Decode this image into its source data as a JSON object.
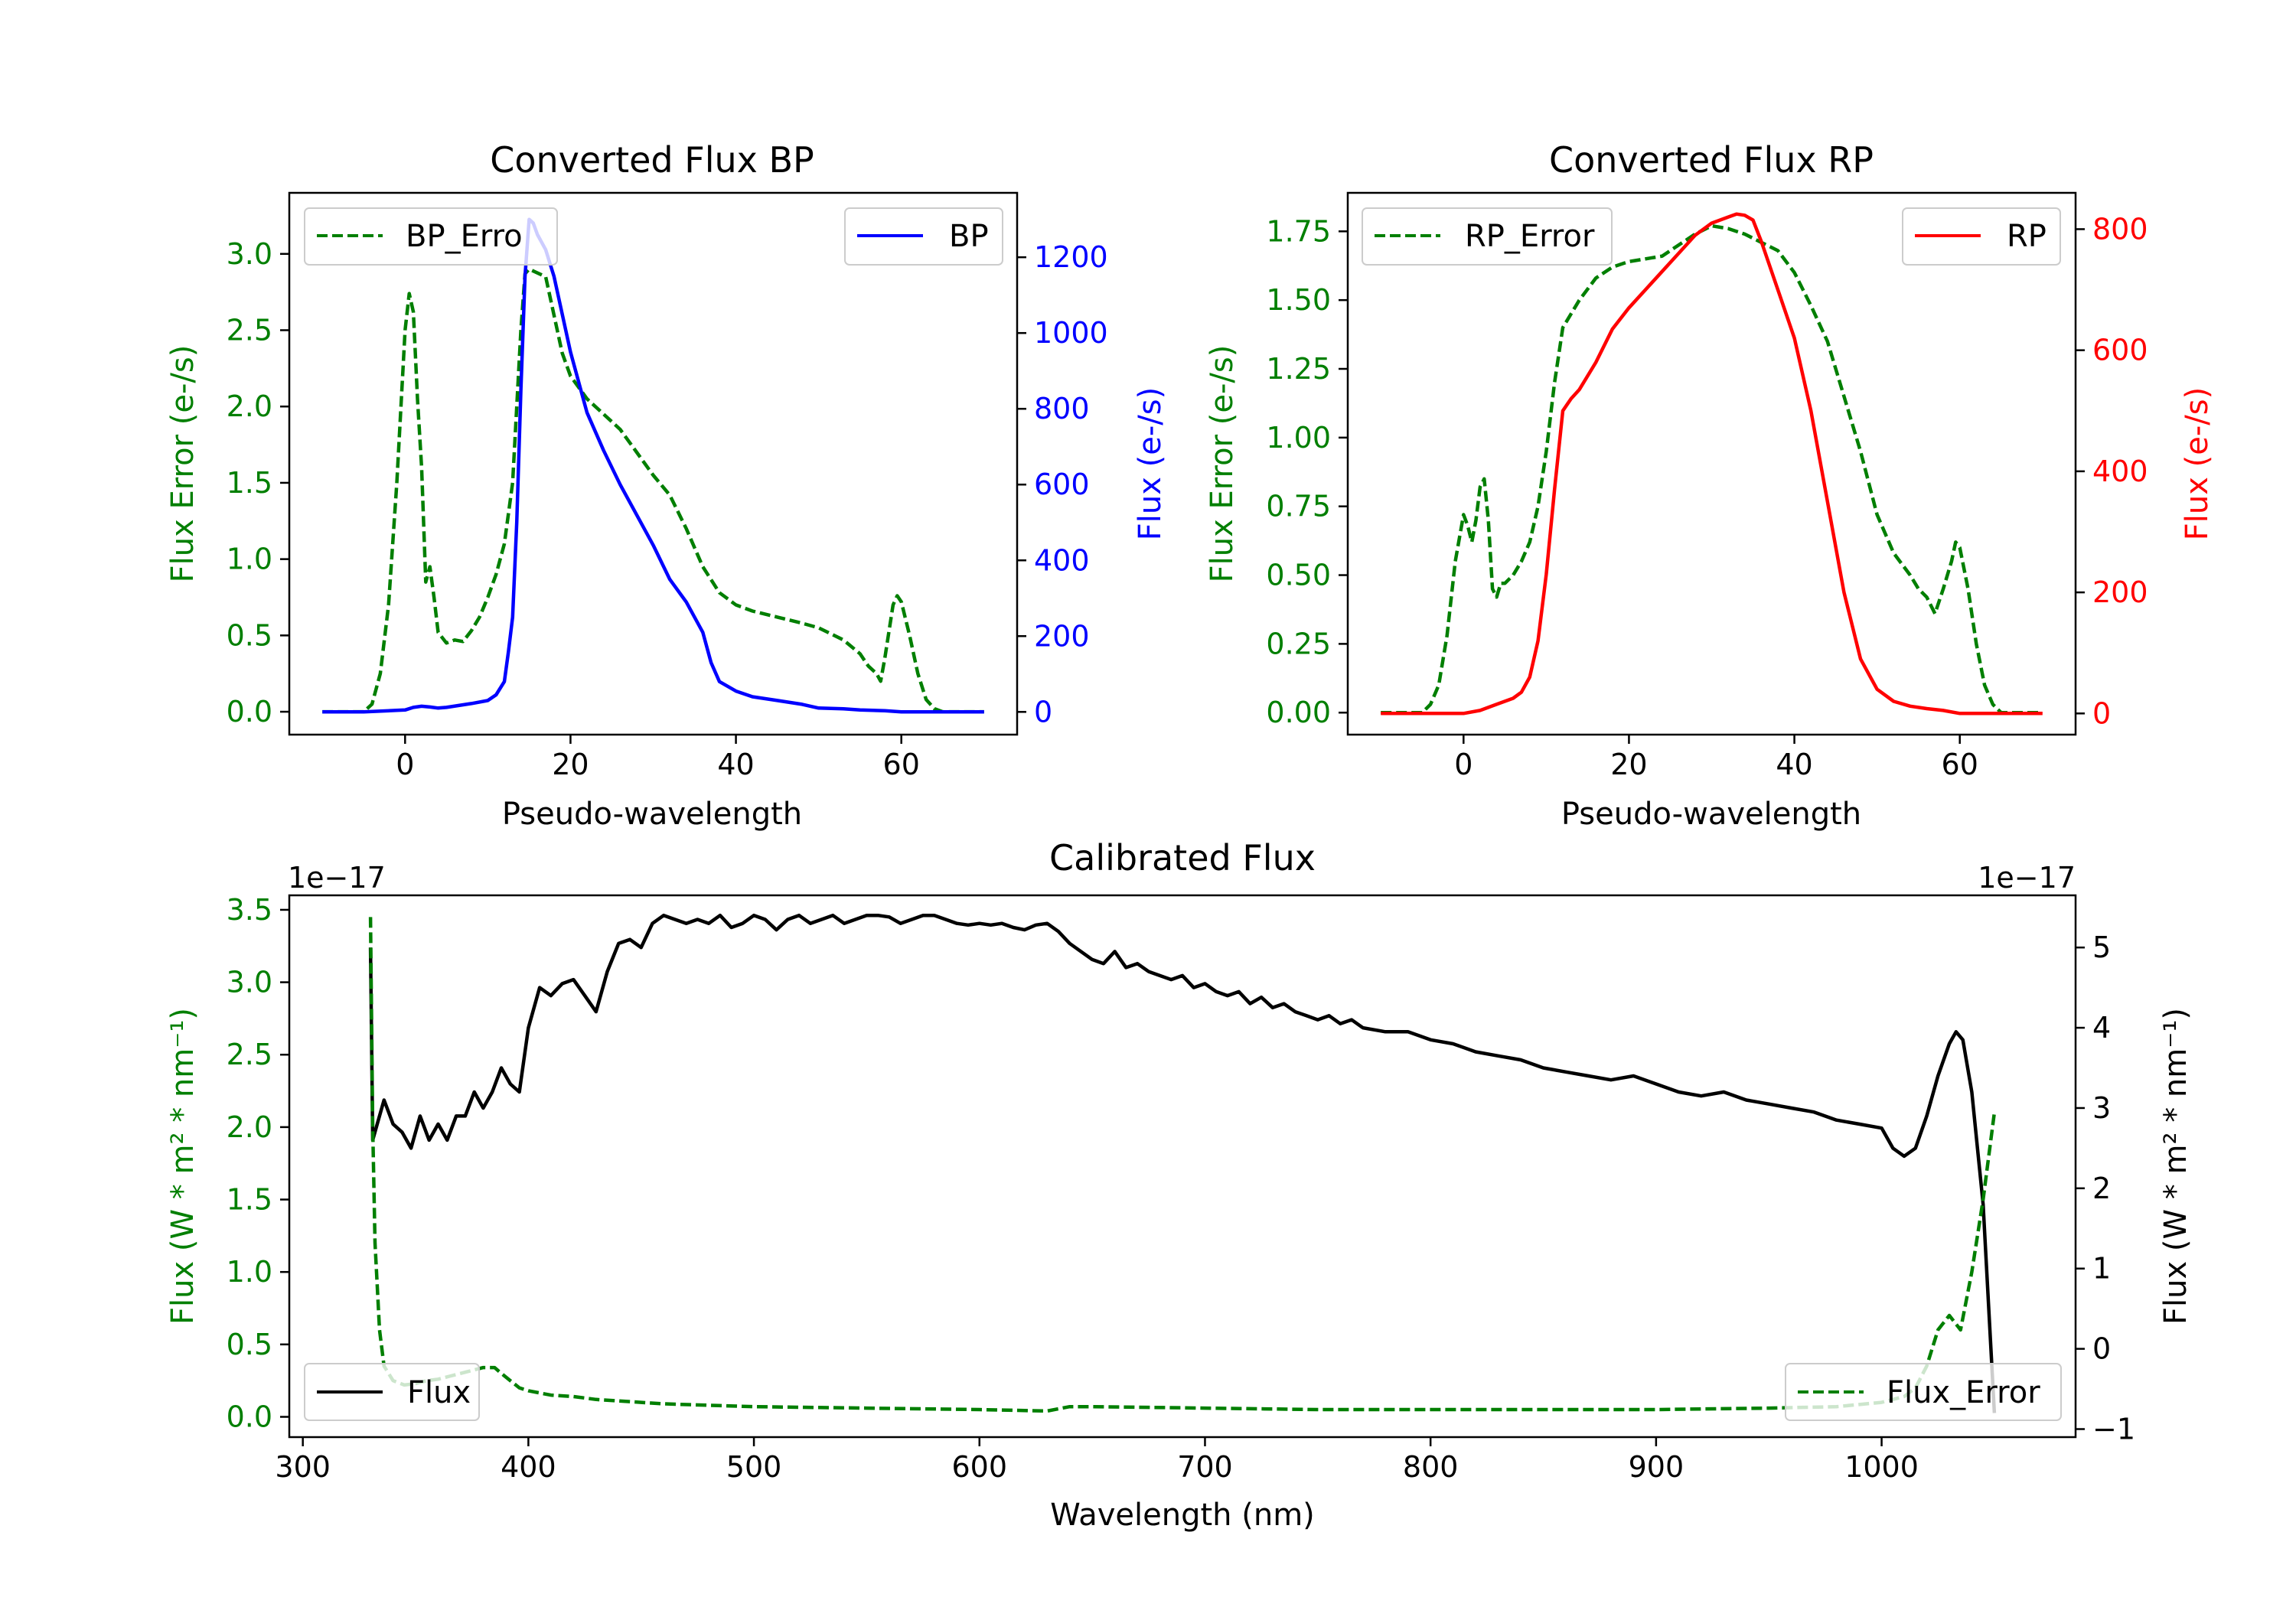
{
  "colors": {
    "green": "#007f00",
    "blue": "#0000ff",
    "red": "#ff0000",
    "black": "#000000"
  },
  "chart_data": [
    {
      "id": "bp",
      "type": "line",
      "title": "Converted Flux BP",
      "xlabel": "Pseudo-wavelength",
      "ylabel_left": "Flux Error (e-/s)",
      "ylabel_right": "Flux (e-/s)",
      "xlim": [
        -14,
        74
      ],
      "ylim_left": [
        -0.15,
        3.4
      ],
      "ylim_right": [
        -60,
        1370
      ],
      "xticks": [
        0,
        20,
        40,
        60
      ],
      "yticks_left": [
        "0.0",
        "0.5",
        "1.0",
        "1.5",
        "2.0",
        "2.5",
        "3.0"
      ],
      "yticks_right": [
        "0",
        "200",
        "400",
        "600",
        "800",
        "1000",
        "1200"
      ],
      "series": [
        {
          "name": "BP_Error",
          "axis": "left",
          "style": "dashed",
          "color": "#007f00",
          "x": [
            -10,
            -5,
            -4,
            -3,
            -2,
            -1,
            0,
            0.5,
            1,
            1.5,
            2,
            2.5,
            3,
            3.5,
            4,
            5,
            6,
            7,
            8,
            9,
            10,
            11,
            12,
            13,
            14,
            14.5,
            15,
            17,
            18,
            19,
            20,
            22,
            24,
            26,
            28,
            30,
            32,
            34,
            36,
            38,
            40,
            42,
            45,
            48,
            50,
            53,
            55,
            56,
            57,
            57.5,
            58,
            59,
            59.5,
            60,
            61,
            62,
            63,
            64,
            65,
            66,
            68,
            70
          ],
          "y": [
            0.0,
            0.0,
            0.05,
            0.25,
            0.7,
            1.5,
            2.5,
            2.74,
            2.62,
            2.05,
            1.6,
            0.85,
            0.95,
            0.75,
            0.52,
            0.45,
            0.47,
            0.46,
            0.53,
            0.62,
            0.75,
            0.9,
            1.1,
            1.5,
            2.5,
            2.87,
            2.9,
            2.85,
            2.6,
            2.35,
            2.2,
            2.05,
            1.95,
            1.85,
            1.7,
            1.55,
            1.42,
            1.2,
            0.95,
            0.78,
            0.7,
            0.66,
            0.62,
            0.58,
            0.55,
            0.47,
            0.38,
            0.3,
            0.25,
            0.2,
            0.35,
            0.7,
            0.76,
            0.72,
            0.5,
            0.25,
            0.08,
            0.02,
            0.0,
            0.0,
            0.0,
            0.0
          ]
        },
        {
          "name": "BP",
          "axis": "right",
          "style": "solid",
          "color": "#0000ff",
          "x": [
            -10,
            -5,
            0,
            1,
            2,
            3,
            4,
            5,
            8,
            10,
            11,
            12,
            12.5,
            13,
            13.5,
            14,
            14.5,
            15,
            15.5,
            16,
            17,
            18,
            20,
            22,
            24,
            26,
            28,
            30,
            32,
            34,
            36,
            37,
            38,
            40,
            42,
            45,
            48,
            50,
            53,
            55,
            58,
            60,
            65,
            70
          ],
          "y": [
            0,
            0,
            5,
            12,
            15,
            13,
            10,
            12,
            22,
            30,
            45,
            80,
            160,
            250,
            500,
            850,
            1150,
            1300,
            1290,
            1260,
            1220,
            1150,
            950,
            790,
            690,
            600,
            520,
            440,
            350,
            290,
            210,
            130,
            80,
            55,
            40,
            30,
            20,
            10,
            8,
            5,
            3,
            0,
            0,
            0
          ]
        }
      ],
      "legend": [
        {
          "label": "BP_Erro",
          "position": "top-left",
          "style": "dashed",
          "color": "#007f00"
        },
        {
          "label": "BP",
          "position": "top-right",
          "style": "solid",
          "color": "#0000ff"
        }
      ]
    },
    {
      "id": "rp",
      "type": "line",
      "title": "Converted Flux RP",
      "xlabel": "Pseudo-wavelength",
      "ylabel_left": "Flux Error (e-/s)",
      "ylabel_right": "Flux (e-/s)",
      "xlim": [
        -14,
        74
      ],
      "ylim_left": [
        -0.08,
        1.89
      ],
      "ylim_right": [
        -35,
        860
      ],
      "xticks": [
        0,
        20,
        40,
        60
      ],
      "yticks_left": [
        "0.00",
        "0.25",
        "0.50",
        "0.75",
        "1.00",
        "1.25",
        "1.50",
        "1.75"
      ],
      "yticks_right": [
        "0",
        "200",
        "400",
        "600",
        "800"
      ],
      "series": [
        {
          "name": "RP_Error",
          "axis": "left",
          "style": "dashed",
          "color": "#007f00",
          "x": [
            -10,
            -5,
            -4,
            -3,
            -2,
            -1,
            0,
            0.5,
            1,
            1.5,
            2,
            2.5,
            3,
            3.5,
            4,
            4.5,
            5,
            6,
            7,
            8,
            9,
            10,
            11,
            12,
            13,
            14,
            16,
            18,
            20,
            22,
            24,
            26,
            28,
            30,
            32,
            34,
            36,
            38,
            40,
            42,
            44,
            46,
            48,
            50,
            52,
            54,
            55,
            56,
            57,
            58,
            59,
            59.5,
            60,
            61,
            62,
            63,
            64,
            65,
            68,
            70
          ],
          "y": [
            0.0,
            0.0,
            0.03,
            0.1,
            0.28,
            0.55,
            0.72,
            0.68,
            0.62,
            0.7,
            0.82,
            0.85,
            0.7,
            0.45,
            0.42,
            0.47,
            0.47,
            0.5,
            0.55,
            0.62,
            0.75,
            0.95,
            1.2,
            1.4,
            1.45,
            1.5,
            1.58,
            1.62,
            1.64,
            1.65,
            1.66,
            1.7,
            1.74,
            1.77,
            1.76,
            1.74,
            1.71,
            1.68,
            1.6,
            1.48,
            1.35,
            1.15,
            0.95,
            0.72,
            0.58,
            0.5,
            0.45,
            0.42,
            0.36,
            0.45,
            0.55,
            0.62,
            0.6,
            0.45,
            0.25,
            0.1,
            0.03,
            0.0,
            0.0,
            0.0
          ]
        },
        {
          "name": "RP",
          "axis": "right",
          "style": "solid",
          "color": "#ff0000",
          "x": [
            -10,
            -5,
            0,
            2,
            4,
            6,
            7,
            8,
            9,
            10,
            11,
            12,
            13,
            14,
            16,
            18,
            20,
            22,
            24,
            26,
            28,
            30,
            32,
            33,
            34,
            35,
            36,
            38,
            40,
            42,
            44,
            46,
            48,
            50,
            52,
            54,
            56,
            58,
            60,
            65,
            70
          ],
          "y": [
            0,
            0,
            0,
            5,
            15,
            25,
            35,
            60,
            120,
            230,
            370,
            500,
            520,
            535,
            580,
            635,
            670,
            700,
            730,
            760,
            790,
            810,
            820,
            825,
            823,
            815,
            780,
            700,
            620,
            500,
            350,
            200,
            90,
            40,
            20,
            12,
            8,
            5,
            0,
            0,
            0
          ]
        }
      ],
      "legend": [
        {
          "label": "RP_Error",
          "position": "top-left",
          "style": "dashed",
          "color": "#007f00"
        },
        {
          "label": "RP",
          "position": "top-right",
          "style": "solid",
          "color": "#ff0000"
        }
      ]
    },
    {
      "id": "cal",
      "type": "line",
      "title": "Calibrated Flux",
      "xlabel": "Wavelength (nm)",
      "ylabel_left": "Flux (W * m² * nm⁻¹)",
      "ylabel_right": "Flux (W * m² * nm⁻¹)",
      "offset_left": "1e−17",
      "offset_right": "1e−17",
      "xlim": [
        294,
        1086
      ],
      "ylim_left": [
        -0.14,
        3.6
      ],
      "ylim_right": [
        -1.1,
        5.65
      ],
      "xticks": [
        300,
        400,
        500,
        600,
        700,
        800,
        900,
        1000
      ],
      "yticks_left": [
        "0.0",
        "0.5",
        "1.0",
        "1.5",
        "2.0",
        "2.5",
        "3.0",
        "3.5"
      ],
      "yticks_right": [
        "−1",
        "0",
        "1",
        "2",
        "3",
        "4",
        "5"
      ],
      "series": [
        {
          "name": "Flux",
          "axis": "right",
          "style": "solid",
          "color": "#000000",
          "x": [
            330,
            331,
            333,
            336,
            340,
            344,
            348,
            352,
            356,
            360,
            364,
            368,
            372,
            376,
            380,
            384,
            388,
            392,
            396,
            400,
            405,
            410,
            415,
            420,
            425,
            430,
            435,
            440,
            445,
            450,
            455,
            460,
            465,
            470,
            475,
            480,
            485,
            490,
            495,
            500,
            505,
            510,
            515,
            520,
            525,
            530,
            535,
            540,
            545,
            550,
            555,
            560,
            565,
            570,
            575,
            580,
            585,
            590,
            595,
            600,
            605,
            610,
            615,
            620,
            625,
            630,
            635,
            640,
            645,
            650,
            655,
            660,
            665,
            670,
            675,
            680,
            685,
            690,
            695,
            700,
            705,
            710,
            715,
            720,
            725,
            730,
            735,
            740,
            745,
            750,
            755,
            760,
            765,
            770,
            780,
            790,
            800,
            810,
            820,
            830,
            840,
            850,
            860,
            870,
            880,
            890,
            900,
            910,
            920,
            930,
            940,
            950,
            960,
            970,
            980,
            990,
            1000,
            1005,
            1010,
            1015,
            1020,
            1025,
            1030,
            1033,
            1036,
            1040,
            1045,
            1050
          ],
          "y": [
            5.0,
            2.6,
            2.8,
            3.1,
            2.8,
            2.7,
            2.5,
            2.9,
            2.6,
            2.8,
            2.6,
            2.9,
            2.9,
            3.2,
            3.0,
            3.2,
            3.5,
            3.3,
            3.2,
            4.0,
            4.5,
            4.4,
            4.55,
            4.6,
            4.4,
            4.2,
            4.7,
            5.05,
            5.1,
            5.0,
            5.3,
            5.4,
            5.35,
            5.3,
            5.35,
            5.3,
            5.4,
            5.25,
            5.3,
            5.4,
            5.35,
            5.22,
            5.35,
            5.4,
            5.3,
            5.35,
            5.4,
            5.3,
            5.35,
            5.4,
            5.4,
            5.38,
            5.3,
            5.35,
            5.4,
            5.4,
            5.35,
            5.3,
            5.28,
            5.3,
            5.28,
            5.3,
            5.25,
            5.22,
            5.28,
            5.3,
            5.2,
            5.05,
            4.95,
            4.85,
            4.8,
            4.95,
            4.75,
            4.8,
            4.7,
            4.65,
            4.6,
            4.65,
            4.5,
            4.55,
            4.45,
            4.4,
            4.45,
            4.3,
            4.38,
            4.25,
            4.3,
            4.2,
            4.15,
            4.1,
            4.15,
            4.05,
            4.1,
            4.0,
            3.95,
            3.95,
            3.85,
            3.8,
            3.7,
            3.65,
            3.6,
            3.5,
            3.45,
            3.4,
            3.35,
            3.4,
            3.3,
            3.2,
            3.15,
            3.2,
            3.1,
            3.05,
            3.0,
            2.95,
            2.85,
            2.8,
            2.75,
            2.5,
            2.4,
            2.5,
            2.9,
            3.4,
            3.8,
            3.95,
            3.85,
            3.2,
            1.8,
            -0.8
          ]
        },
        {
          "name": "Flux_Error",
          "axis": "left",
          "style": "dashed",
          "color": "#007f00",
          "x": [
            330,
            331,
            332,
            334,
            336,
            340,
            345,
            350,
            355,
            360,
            365,
            370,
            375,
            380,
            385,
            388,
            392,
            396,
            400,
            410,
            420,
            430,
            440,
            450,
            460,
            480,
            500,
            550,
            600,
            630,
            640,
            650,
            700,
            750,
            800,
            850,
            900,
            950,
            980,
            1000,
            1010,
            1015,
            1020,
            1025,
            1030,
            1035,
            1040,
            1045,
            1050
          ],
          "y": [
            3.45,
            2.0,
            1.2,
            0.6,
            0.35,
            0.25,
            0.22,
            0.23,
            0.25,
            0.26,
            0.28,
            0.3,
            0.32,
            0.34,
            0.34,
            0.3,
            0.25,
            0.2,
            0.18,
            0.15,
            0.14,
            0.12,
            0.11,
            0.1,
            0.09,
            0.08,
            0.07,
            0.06,
            0.05,
            0.04,
            0.07,
            0.07,
            0.06,
            0.05,
            0.05,
            0.05,
            0.05,
            0.06,
            0.07,
            0.1,
            0.14,
            0.2,
            0.35,
            0.6,
            0.7,
            0.6,
            1.0,
            1.5,
            2.1
          ]
        }
      ],
      "legend": [
        {
          "label": "Flux",
          "position": "bottom-left",
          "style": "solid",
          "color": "#000000"
        },
        {
          "label": "Flux_Error",
          "position": "bottom-right",
          "style": "dashed",
          "color": "#007f00"
        }
      ]
    }
  ]
}
